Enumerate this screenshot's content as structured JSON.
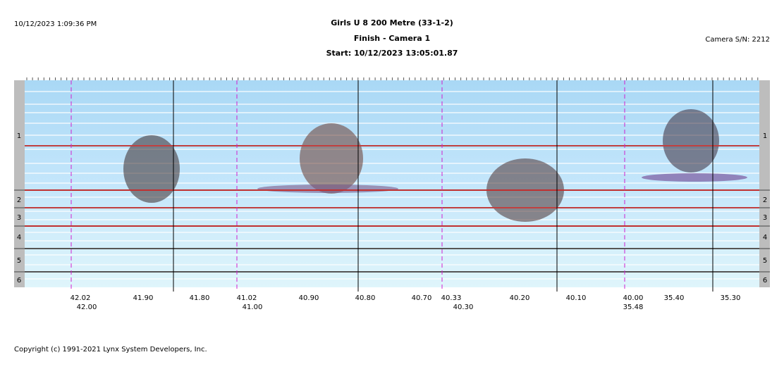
{
  "header": {
    "datetime": "10/12/2023 1:09:36 PM",
    "title": "Girls U 8 200 Metre (33-1-2)",
    "subtitle": "Finish - Camera 1",
    "start": "Start: 10/12/2023 13:05:01.87",
    "camera_sn": "Camera S/N: 2212"
  },
  "lanes": [
    "1",
    "2",
    "3",
    "4",
    "5",
    "6"
  ],
  "time_labels": [
    "42.02",
    "42.00",
    "41.90",
    "41.80",
    "41.02",
    "41.00",
    "40.90",
    "40.80",
    "40.70",
    "40.33",
    "40.30",
    "40.20",
    "40.10",
    "40.00",
    "35.48",
    "35.40",
    "35.30"
  ],
  "footer": "Copyright (c) 1991-2021 Lynx System Developers, Inc."
}
